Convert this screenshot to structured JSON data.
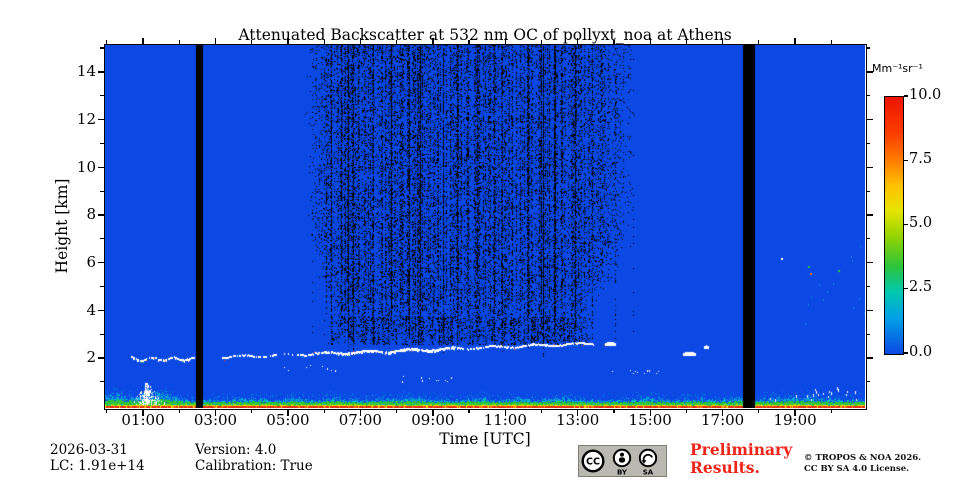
{
  "title": "Attenuated Backscatter at 532 nm OC of pollyxt_noa at Athens",
  "x_axis": {
    "label": "Time [UTC]",
    "major_tick_labels": [
      "01:00",
      "03:00",
      "05:00",
      "07:00",
      "09:00",
      "11:00",
      "13:00",
      "15:00",
      "17:00",
      "19:00"
    ],
    "major_hours": [
      1,
      3,
      5,
      7,
      9,
      11,
      13,
      15,
      17,
      19
    ],
    "minor_hours": [
      0,
      2,
      4,
      6,
      8,
      10,
      12,
      14,
      16,
      18,
      20
    ],
    "range_hours": [
      -0.05,
      20.93
    ]
  },
  "y_axis": {
    "label": "Height [km]",
    "major_tick_labels": [
      "2",
      "4",
      "6",
      "8",
      "10",
      "12",
      "14"
    ],
    "major_km": [
      2,
      4,
      6,
      8,
      10,
      12,
      14
    ],
    "minor_km": [
      1,
      3,
      5,
      7,
      9,
      11,
      13,
      15
    ],
    "range_km": [
      -0.1,
      15.13
    ]
  },
  "colorbar": {
    "unit": "Mm⁻¹sr⁻¹",
    "tick_labels": [
      "10.0",
      "7.5",
      "5.0",
      "2.5",
      "0.0"
    ],
    "tick_values": [
      10,
      7.5,
      5,
      2.5,
      0
    ],
    "min": 0,
    "max": 10,
    "colormap": "jet",
    "stops": [
      [
        "0%",
        "#0b48e4"
      ],
      [
        "14%",
        "#00a0e6"
      ],
      [
        "24%",
        "#00c8b0"
      ],
      [
        "34%",
        "#2cc43c"
      ],
      [
        "46%",
        "#96d400"
      ],
      [
        "56%",
        "#e8e400"
      ],
      [
        "66%",
        "#ffbe00"
      ],
      [
        "76%",
        "#ff7800"
      ],
      [
        "86%",
        "#fb3c00"
      ],
      [
        "100%",
        "#ec1400"
      ]
    ]
  },
  "footer": {
    "date": "2026-03-31",
    "lc": "LC: 1.91e+14",
    "version": "Version: 4.0",
    "calibration": "Calibration: True"
  },
  "license_badge": {
    "cc": "CC",
    "by": "BY",
    "sa": "SA"
  },
  "preliminary": {
    "line1": "Preliminary",
    "line2": "Results."
  },
  "copyright": {
    "line1": "© TROPOS & NOA 2026.",
    "line2": "CC BY SA 4.0 License."
  },
  "chart_data": {
    "type": "heatmap",
    "title": "Attenuated Backscatter at 532 nm OC of pollyxt_noa at Athens",
    "xlabel": "Time [UTC]",
    "ylabel": "Height [km]",
    "xlim_hours": [
      0,
      20.93
    ],
    "ylim_km": [
      0,
      15.13
    ],
    "value_unit": "Mm⁻¹sr⁻¹",
    "value_range": [
      0,
      10
    ],
    "colormap": "jet",
    "background_value": 0.15,
    "palette": {
      "background_blue": "#0b48e4",
      "noise_black": "#000000",
      "saturated_white": "#ffffff",
      "surface_red": "#e63214",
      "surface_orange": "#ff7800",
      "surface_yellow": "#ffd900",
      "surface_lime": "#9ade00",
      "surface_green": "#2cc43c",
      "surface_cyan": "#00b4d8",
      "cirrus_cyan": "rgba(40,200,230,0.45)"
    },
    "features": [
      {
        "name": "surface-aerosol-layer",
        "t": [
          0,
          20.93
        ],
        "h": [
          0,
          0.45
        ],
        "note": "red at ground, yellow/green above, cyan top, values 2-10"
      },
      {
        "name": "convective-plumes-white",
        "t": [
          0.75,
          1.65
        ],
        "h": [
          0.1,
          1.0
        ],
        "note": "saturated white puffs around 01:00"
      },
      {
        "name": "aerosol-layer-segment-1",
        "t": [
          0.68,
          2.4
        ],
        "h": [
          1.9,
          2.1
        ],
        "note": "saturated white dotted layer ~2 km"
      },
      {
        "name": "aerosol-layer-segment-2",
        "t": [
          3.2,
          13.4
        ],
        "h": [
          2.05,
          2.65
        ],
        "note": "saturated white layer slowly ascending 2.05->2.62 km"
      },
      {
        "name": "cloud-patch",
        "t": [
          13.75,
          14.05
        ],
        "h": [
          2.5,
          2.65
        ]
      },
      {
        "name": "cloud-patch",
        "t": [
          15.9,
          16.25
        ],
        "h": [
          2.1,
          2.25
        ]
      },
      {
        "name": "cloud-patch",
        "t": [
          16.48,
          16.62
        ],
        "h": [
          2.4,
          2.5
        ]
      },
      {
        "name": "sub-layer-dots",
        "t": [
          4.9,
          6.3
        ],
        "h": [
          1.5,
          1.75
        ]
      },
      {
        "name": "sub-layer-dots",
        "t": [
          7.8,
          9.5
        ],
        "h": [
          1.0,
          1.3
        ]
      },
      {
        "name": "sub-layer-dots",
        "t": [
          13.9,
          15.2
        ],
        "h": [
          1.35,
          1.55
        ]
      },
      {
        "name": "low-cloud-specks",
        "t": [
          18.25,
          20.7
        ],
        "h": [
          0.25,
          0.9
        ]
      },
      {
        "name": "signal-noise-speckle",
        "t": [
          5.45,
          14.6
        ],
        "h": [
          2.0,
          15.13
        ],
        "note": "black speckle, daytime low SNR"
      },
      {
        "name": "noise-band",
        "t": [
          6.0,
          13.45
        ],
        "h": [
          2.55,
          3.7
        ]
      },
      {
        "name": "data-gap-bar",
        "t": [
          2.455,
          2.65
        ],
        "h": [
          0,
          15.13
        ]
      },
      {
        "name": "data-gap-bar",
        "t": [
          17.57,
          17.9
        ],
        "h": [
          0,
          15.13
        ]
      },
      {
        "name": "faint-cirrus-cyan",
        "t": [
          18.6,
          20.93
        ],
        "h": [
          3.4,
          6.8
        ],
        "note": "values ~0.5-1"
      },
      {
        "name": "isolated-specks",
        "specks": [
          {
            "t": 18.62,
            "h": 6.2,
            "color": "#ffffff"
          },
          {
            "t": 19.37,
            "h": 5.85,
            "color": "#2cc43c"
          },
          {
            "t": 19.42,
            "h": 5.55,
            "color": "#ff7800"
          },
          {
            "t": 20.18,
            "h": 5.7,
            "color": "#2cc43c"
          }
        ]
      }
    ]
  }
}
